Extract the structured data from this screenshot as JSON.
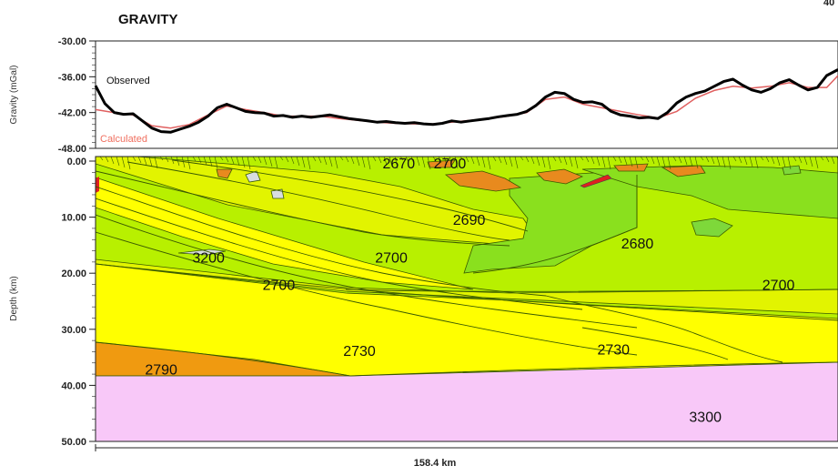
{
  "title": "GRAVITY",
  "colors": {
    "observed": "#000000",
    "calculated": "#e06060",
    "calculated_label": "#f07060",
    "d2670": "#e88a1e",
    "d2680": "#7ed83a",
    "d2690": "#8ae01e",
    "d2700": "#b8f000",
    "d2700_yellow": "#e2f400",
    "d2730": "#ffff00",
    "d2790": "#f09a10",
    "d3200": "#d8dde0",
    "d3300": "#f8c8f8"
  },
  "chart_data": [
    {
      "type": "line",
      "panel": "gravity",
      "xlabel": "",
      "ylabel": "Gravity (mGal)",
      "ylim": [
        -48,
        -30
      ],
      "x_range": [
        0,
        158.4
      ],
      "yticks": [
        "-30.00",
        "-36.00",
        "-42.00",
        "-48.00"
      ],
      "series": [
        {
          "name": "Observed",
          "x": [
            0,
            2,
            4,
            6,
            8,
            10,
            12,
            14,
            16,
            18,
            20,
            22,
            24,
            26,
            28,
            30,
            32,
            34,
            36,
            38,
            40,
            42,
            44,
            46,
            48,
            50,
            52,
            54,
            56,
            58,
            60,
            62,
            64,
            66,
            68,
            70,
            72,
            74,
            76,
            78,
            80,
            82,
            84,
            86,
            88,
            90,
            92,
            94,
            96,
            98,
            100,
            102,
            104,
            106,
            108,
            110,
            112,
            114,
            116,
            118,
            120,
            122,
            124,
            126,
            128,
            130,
            132,
            134,
            136,
            138,
            140,
            142,
            144,
            146,
            148,
            150,
            152,
            154,
            156,
            158.4
          ],
          "values": [
            -37.5,
            -40.5,
            -42,
            -42.3,
            -42.2,
            -43.4,
            -44.6,
            -45.2,
            -45.3,
            -44.8,
            -44.3,
            -43.6,
            -42.6,
            -41.2,
            -40.6,
            -41.2,
            -41.8,
            -42,
            -42.1,
            -42.6,
            -42.5,
            -42.8,
            -42.6,
            -42.8,
            -42.6,
            -42.4,
            -42.7,
            -43,
            -43.2,
            -43.4,
            -43.6,
            -43.5,
            -43.7,
            -43.8,
            -43.7,
            -43.9,
            -44,
            -43.8,
            -43.4,
            -43.6,
            -43.4,
            -43.2,
            -43,
            -42.7,
            -42.5,
            -42.3,
            -41.8,
            -40.8,
            -39.4,
            -38.6,
            -38.8,
            -39.8,
            -40.3,
            -40.2,
            -40.6,
            -41.8,
            -42.4,
            -42.6,
            -42.9,
            -42.8,
            -43,
            -42,
            -40.4,
            -39.4,
            -38.8,
            -38.4,
            -37.6,
            -36.8,
            -36.4,
            -37.4,
            -38.2,
            -38.6,
            -38,
            -37,
            -36.5,
            -37.4,
            -38.2,
            -37.8,
            -35.8,
            -34.8
          ]
        },
        {
          "name": "Calculated",
          "x": [
            0,
            4,
            8,
            12,
            16,
            20,
            24,
            28,
            32,
            36,
            40,
            44,
            48,
            52,
            56,
            60,
            64,
            68,
            72,
            76,
            80,
            84,
            88,
            92,
            96,
            100,
            104,
            108,
            112,
            116,
            120,
            124,
            128,
            132,
            136,
            140,
            144,
            148,
            152,
            156,
            158.4
          ],
          "values": [
            -41.5,
            -42,
            -42.4,
            -44.2,
            -44.6,
            -44,
            -42.4,
            -40.9,
            -41.5,
            -42,
            -42.6,
            -42.6,
            -42.6,
            -43,
            -43.3,
            -43.6,
            -43.8,
            -43.9,
            -43.9,
            -43.6,
            -43.3,
            -43,
            -42.6,
            -42,
            -39.8,
            -39.4,
            -40.6,
            -41.2,
            -41.8,
            -42.4,
            -42.9,
            -41.8,
            -39.6,
            -38.3,
            -37.6,
            -37.9,
            -37.6,
            -37,
            -37.8,
            -37.8,
            -35.8
          ]
        }
      ]
    },
    {
      "type": "area",
      "panel": "depth-model",
      "xlabel": "158.4 km",
      "ylabel": "Depth (km)",
      "ylim": [
        50,
        0
      ],
      "yticks": [
        "0.00",
        "10.00",
        "20.00",
        "30.00",
        "40.00",
        "50.00"
      ],
      "body_labels": [
        {
          "text": "2670",
          "x": 64.7,
          "depth": 0.3
        },
        {
          "text": "2700",
          "x": 75.6,
          "depth": 0.3
        },
        {
          "text": "2690",
          "x": 79.7,
          "depth": 10.4
        },
        {
          "text": "2680",
          "x": 115.6,
          "depth": 14.6
        },
        {
          "text": "3200",
          "x": 24.1,
          "depth": 17.1
        },
        {
          "text": "2700",
          "x": 63.1,
          "depth": 17.1
        },
        {
          "text": "2700",
          "x": 39.1,
          "depth": 22.0
        },
        {
          "text": "2700",
          "x": 145.7,
          "depth": 22.0
        },
        {
          "text": "2730",
          "x": 56.3,
          "depth": 33.8
        },
        {
          "text": "2730",
          "x": 110.5,
          "depth": 33.5
        },
        {
          "text": "2790",
          "x": 14.0,
          "depth": 37.1
        },
        {
          "text": "3300",
          "x": 130.1,
          "depth": 45.5
        }
      ]
    }
  ]
}
